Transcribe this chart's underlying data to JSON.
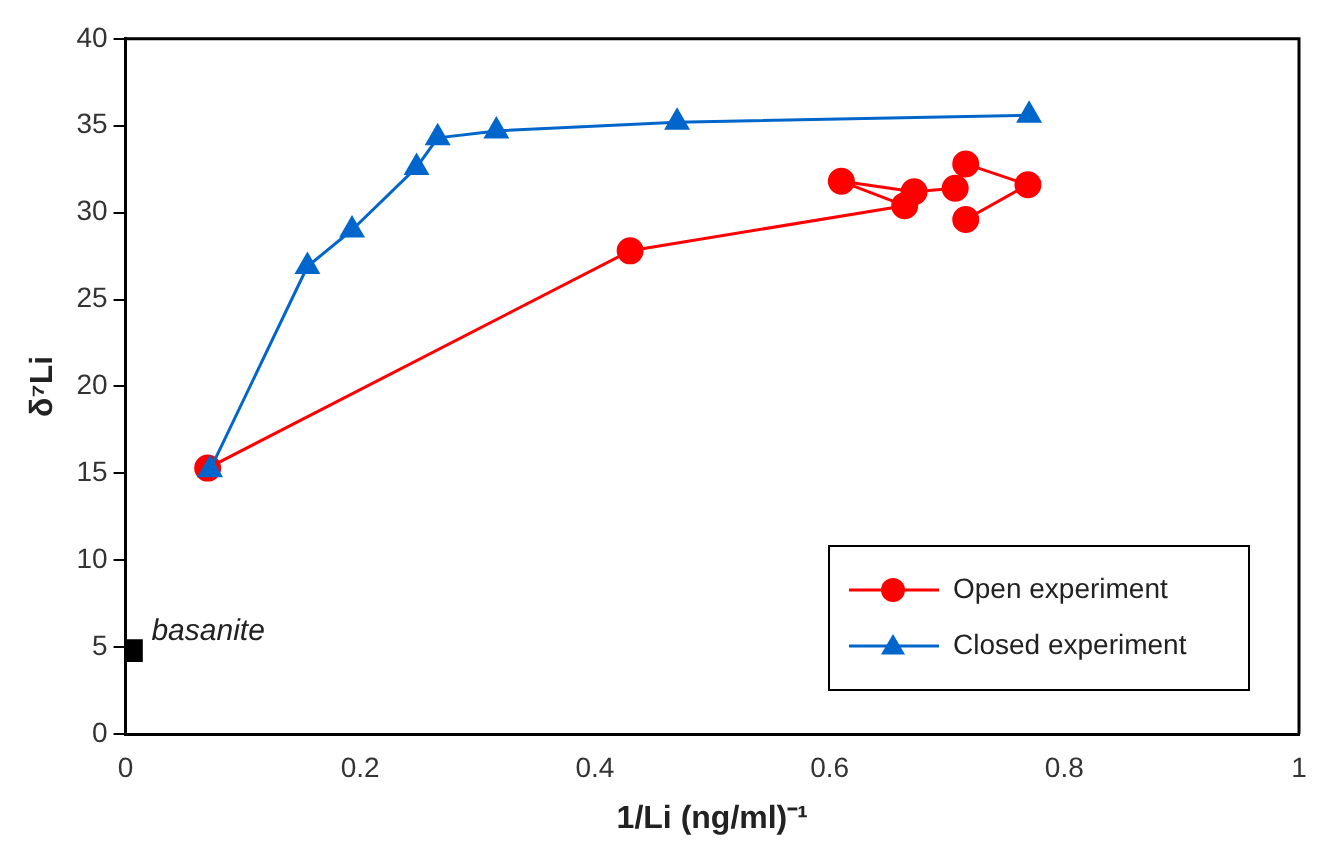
{
  "chart_data": {
    "type": "line",
    "xlabel": "1/Li (ng/ml)⁻¹",
    "ylabel": "δ⁷Li",
    "xlim": [
      0,
      1
    ],
    "xticks": [
      0,
      0.2,
      0.4,
      0.6,
      0.8,
      1
    ],
    "ylim": [
      0,
      40
    ],
    "yticks": [
      0,
      5,
      10,
      15,
      20,
      25,
      30,
      35,
      40
    ],
    "grid": false,
    "legend": "bottom right",
    "annotations": [
      {
        "text": "basanite",
        "x": 0.005,
        "y": 4.8
      }
    ],
    "series": [
      {
        "name": "Open experiment",
        "color": "#ff0000",
        "marker": "circle",
        "x": [
          0.07,
          0.43,
          0.664,
          0.61,
          0.672,
          0.707,
          0.716,
          0.769,
          0.716
        ],
        "values": [
          15.3,
          27.8,
          30.4,
          31.8,
          31.2,
          31.4,
          32.8,
          31.6,
          29.6
        ]
      },
      {
        "name": "Closed experiment",
        "color": "#0066cc",
        "marker": "triangle",
        "x": [
          0.072,
          0.155,
          0.193,
          0.248,
          0.266,
          0.316,
          0.47,
          0.77
        ],
        "values": [
          15.2,
          26.9,
          29.0,
          32.6,
          34.3,
          34.7,
          35.2,
          35.6
        ]
      },
      {
        "type": "scatter",
        "color": "#000000",
        "marker": "square",
        "x": [
          0.005
        ],
        "values": [
          4.8
        ]
      }
    ]
  }
}
